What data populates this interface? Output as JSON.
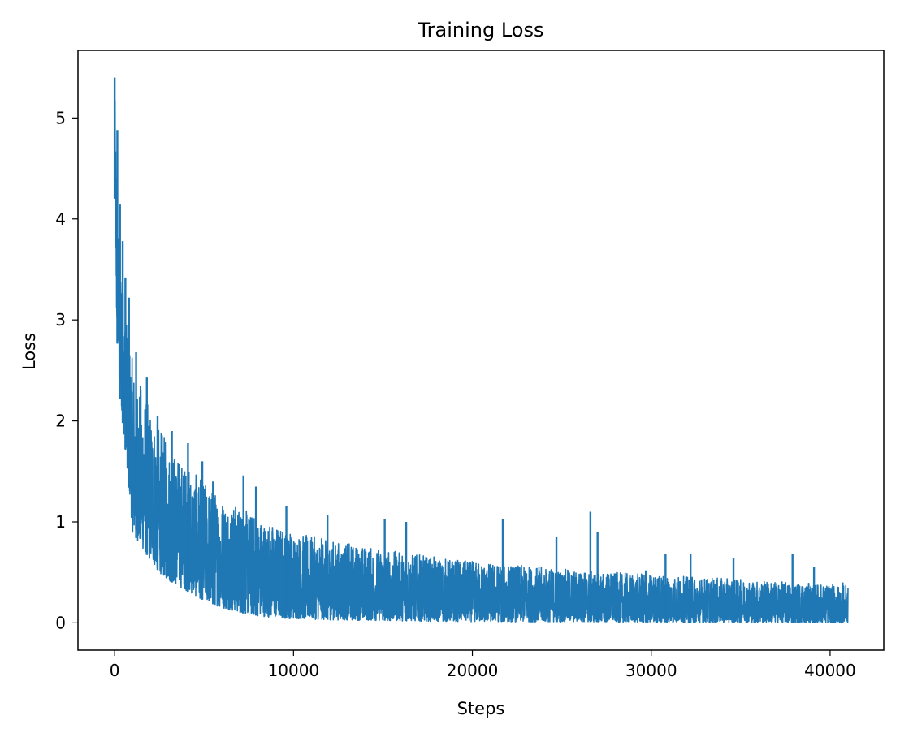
{
  "chart_data": {
    "type": "line",
    "title": "Training Loss",
    "xlabel": "Steps",
    "ylabel": "Loss",
    "xlim": [
      -2050,
      43000
    ],
    "ylim": [
      -0.27,
      5.67
    ],
    "xticks": [
      0,
      10000,
      20000,
      30000,
      40000
    ],
    "yticks": [
      0,
      1,
      2,
      3,
      4,
      5
    ],
    "grid": false,
    "legend": false,
    "series": [
      {
        "color": "#1f77b4",
        "upper_envelope": {
          "x": [
            0,
            100,
            250,
            500,
            750,
            1000,
            1500,
            2000,
            2500,
            3000,
            4000,
            5000,
            6000,
            7000,
            8000,
            9000,
            10000,
            12000,
            14000,
            16000,
            18000,
            20000,
            22000,
            24000,
            26000,
            28000,
            30000,
            32000,
            34000,
            36000,
            38000,
            40000,
            41000
          ],
          "y": [
            5.4,
            4.5,
            3.8,
            3.3,
            2.9,
            2.6,
            2.35,
            2.1,
            1.95,
            1.75,
            1.55,
            1.4,
            1.25,
            1.15,
            1.05,
            0.97,
            0.9,
            0.82,
            0.76,
            0.7,
            0.65,
            0.61,
            0.58,
            0.55,
            0.52,
            0.5,
            0.48,
            0.46,
            0.44,
            0.42,
            0.4,
            0.38,
            0.37
          ]
        },
        "lower_envelope": {
          "x": [
            0,
            100,
            250,
            500,
            750,
            1000,
            1500,
            2000,
            2500,
            3000,
            4000,
            5000,
            6000,
            7000,
            8000,
            9000,
            10000,
            12000,
            14000,
            16000,
            18000,
            20000,
            25000,
            30000,
            35000,
            41000
          ],
          "y": [
            4.2,
            3.0,
            2.3,
            1.9,
            1.45,
            0.9,
            0.75,
            0.62,
            0.5,
            0.42,
            0.32,
            0.22,
            0.15,
            0.1,
            0.07,
            0.05,
            0.04,
            0.03,
            0.025,
            0.02,
            0.015,
            0.012,
            0.01,
            0.005,
            0.005,
            0.0
          ]
        },
        "spikes": [
          {
            "x": 0,
            "y": 5.4
          },
          {
            "x": 150,
            "y": 4.88
          },
          {
            "x": 300,
            "y": 4.15
          },
          {
            "x": 450,
            "y": 3.78
          },
          {
            "x": 600,
            "y": 3.42
          },
          {
            "x": 800,
            "y": 3.22
          },
          {
            "x": 1200,
            "y": 2.68
          },
          {
            "x": 1800,
            "y": 2.43
          },
          {
            "x": 2400,
            "y": 2.05
          },
          {
            "x": 3200,
            "y": 1.9
          },
          {
            "x": 4100,
            "y": 1.78
          },
          {
            "x": 4900,
            "y": 1.6
          },
          {
            "x": 5500,
            "y": 1.4
          },
          {
            "x": 7200,
            "y": 1.46
          },
          {
            "x": 7900,
            "y": 1.35
          },
          {
            "x": 9600,
            "y": 1.16
          },
          {
            "x": 11900,
            "y": 1.07
          },
          {
            "x": 15100,
            "y": 1.03
          },
          {
            "x": 16300,
            "y": 1.0
          },
          {
            "x": 21700,
            "y": 1.03
          },
          {
            "x": 24700,
            "y": 0.85
          },
          {
            "x": 26600,
            "y": 1.1
          },
          {
            "x": 27000,
            "y": 0.9
          },
          {
            "x": 29700,
            "y": 0.52
          },
          {
            "x": 30800,
            "y": 0.68
          },
          {
            "x": 32200,
            "y": 0.68
          },
          {
            "x": 34600,
            "y": 0.64
          },
          {
            "x": 37900,
            "y": 0.68
          },
          {
            "x": 39100,
            "y": 0.55
          },
          {
            "x": 40700,
            "y": 0.4
          }
        ]
      }
    ]
  }
}
